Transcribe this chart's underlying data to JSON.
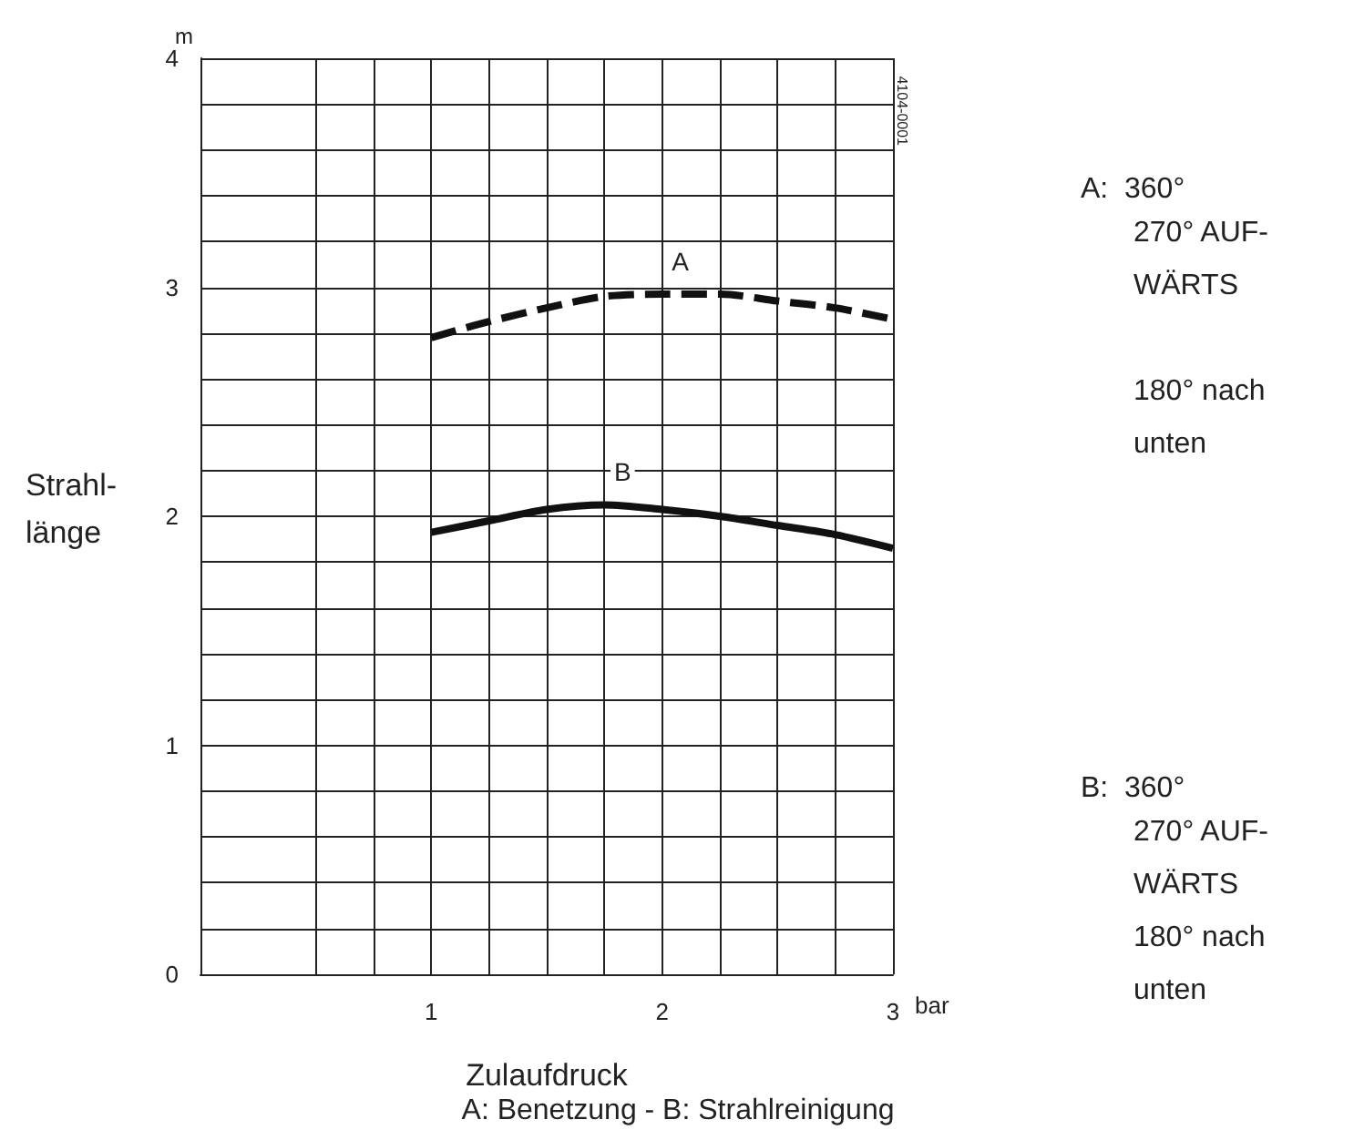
{
  "chart_data": {
    "type": "line",
    "xlabel": "Zulaufdruck",
    "ylabel": "Strahl-\nlänge",
    "x": [
      1,
      1.25,
      1.5,
      1.75,
      2,
      2.25,
      2.5,
      2.75,
      3
    ],
    "series": [
      {
        "name": "A",
        "color": "#111111",
        "line_style": "dashed",
        "values": [
          2.78,
          2.85,
          2.91,
          2.96,
          2.97,
          2.97,
          2.94,
          2.91,
          2.86
        ]
      },
      {
        "name": "B",
        "color": "#111111",
        "line_style": "solid",
        "values": [
          1.93,
          1.98,
          2.03,
          2.05,
          2.03,
          2.0,
          1.96,
          1.92,
          1.86
        ]
      }
    ],
    "xlim": [
      0,
      3
    ],
    "ylim": [
      0,
      4
    ],
    "xticks": [
      {
        "value": 0.5,
        "label": null
      },
      {
        "value": 0.75,
        "label": null
      },
      1,
      {
        "value": 1.25,
        "label": null
      },
      {
        "value": 1.5,
        "label": null
      },
      {
        "value": 1.75,
        "label": null
      },
      2,
      {
        "value": 2.25,
        "label": null
      },
      {
        "value": 2.5,
        "label": null
      },
      {
        "value": 2.75,
        "label": null
      },
      3
    ],
    "yticks": [
      0,
      {
        "value": 0.2,
        "label": null
      },
      {
        "value": 0.4,
        "label": null
      },
      {
        "value": 0.6,
        "label": null
      },
      {
        "value": 0.8,
        "label": null
      },
      1,
      {
        "value": 1.2,
        "label": null
      },
      {
        "value": 1.4,
        "label": null
      },
      {
        "value": 1.6,
        "label": null
      },
      {
        "value": 1.8,
        "label": null
      },
      2,
      {
        "value": 2.2,
        "label": null
      },
      {
        "value": 2.4,
        "label": null
      },
      {
        "value": 2.6,
        "label": null
      },
      {
        "value": 2.8,
        "label": null
      },
      3,
      {
        "value": 3.2,
        "label": null
      },
      {
        "value": 3.4,
        "label": null
      },
      {
        "value": 3.6,
        "label": null
      },
      {
        "value": 3.8,
        "label": null
      },
      4
    ],
    "grid": true,
    "legend": false,
    "marker": "none",
    "annotations": [
      "m",
      "bar",
      "4104-0001",
      "A:  360°\n270° AUF-\nWÄRTS\n\n180° nach\nunten",
      "B:  360°\n270° AUF-\nWÄRTS\n180° nach\nunten",
      "A: Benetzung - B: Strahlreinigung"
    ]
  }
}
